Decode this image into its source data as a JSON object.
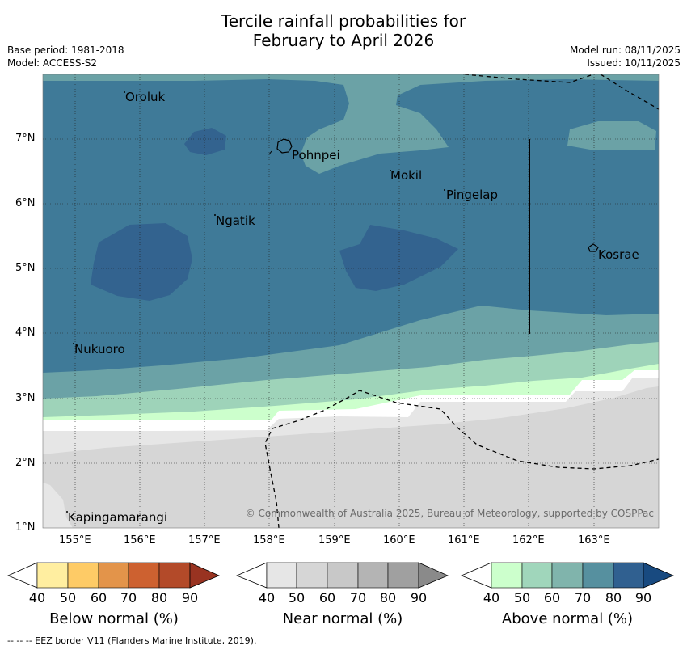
{
  "title": {
    "line1": "Tercile rainfall probabilities for",
    "line2": "February to April 2026"
  },
  "meta": {
    "base_period": "Base period: 1981-2018",
    "model": "Model: ACCESS-S2",
    "model_run": "Model run: 08/11/2025",
    "issued": "Issued: 10/11/2025"
  },
  "axes": {
    "lon_labels": [
      "155°E",
      "156°E",
      "157°E",
      "158°E",
      "159°E",
      "160°E",
      "161°E",
      "162°E",
      "163°E"
    ],
    "lat_labels": [
      "7°N",
      "6°N",
      "5°N",
      "4°N",
      "3°N",
      "2°N",
      "1°N"
    ]
  },
  "places": {
    "oroluk": "Oroluk",
    "pohnpei": "Pohnpei",
    "mokil": "Mokil",
    "pingelap": "Pingelap",
    "ngatik": "Ngatik",
    "kosrae": "Kosrae",
    "nukuoro": "Nukuoro",
    "kapingamarangi": "Kapingamarangi"
  },
  "copyright": "© Commonwealth of Australia 2025, Bureau of Meteorology, supported by COSPPac",
  "colorbars": {
    "below": {
      "caption": "Below normal (%)",
      "ticks": [
        "40",
        "50",
        "60",
        "70",
        "80",
        "90"
      ],
      "colors": [
        "#ffeea0",
        "#fecb66",
        "#e3944a",
        "#cd6130",
        "#b34a29",
        "#993321"
      ]
    },
    "near": {
      "caption": "Near normal (%)",
      "ticks": [
        "40",
        "50",
        "60",
        "70",
        "80",
        "90"
      ],
      "colors": [
        "#e6e6e6",
        "#d6d6d6",
        "#c8c8c8",
        "#b4b4b4",
        "#a0a0a0",
        "#8a8a8a"
      ]
    },
    "above": {
      "caption": "Above normal (%)",
      "ticks": [
        "40",
        "50",
        "60",
        "70",
        "80",
        "90"
      ],
      "colors": [
        "#ccffcc",
        "#a0d6bb",
        "#80b4ac",
        "#56909f",
        "#306090",
        "#184a80"
      ]
    }
  },
  "footer": "--  --  -- EEZ border V11 (Flanders Marine Institute, 2019)."
}
